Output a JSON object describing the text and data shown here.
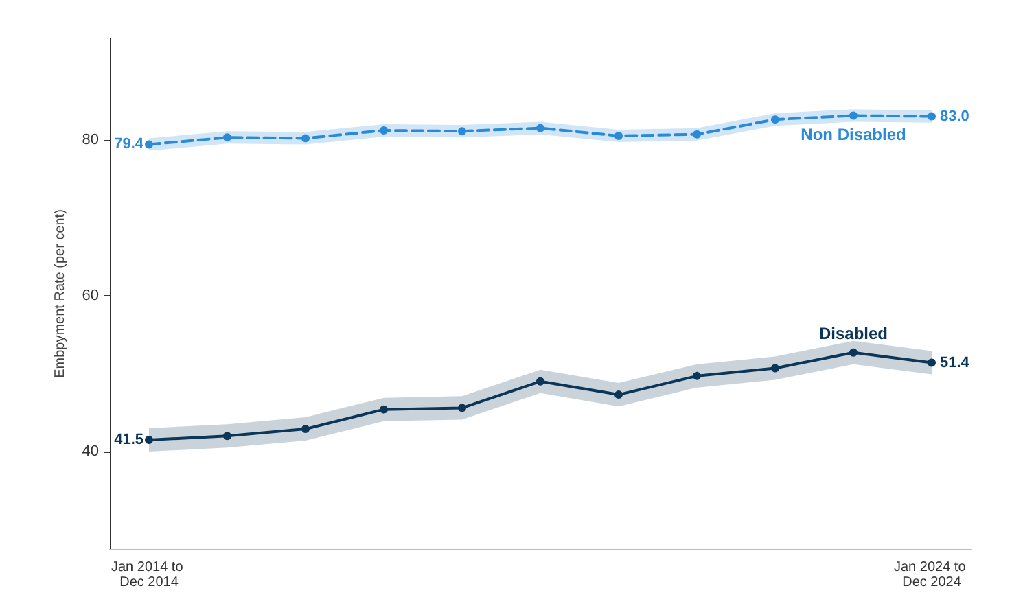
{
  "chart_data": {
    "type": "line",
    "ylabel": "Embpyment Rate (per cent)",
    "categories": [
      "Jan 2014 to Dec 2014",
      null,
      null,
      null,
      null,
      null,
      null,
      null,
      null,
      null,
      "Jan 2024 to Dec 2024"
    ],
    "ylim": [
      27.5,
      93
    ],
    "yticks": [
      40,
      60,
      80
    ],
    "grid": false,
    "legend": false,
    "marker": "circle",
    "series": [
      {
        "name": "Non Disabled",
        "color": "#2b8ad8",
        "line_style": "dashed",
        "values": [
          79.4,
          80.3,
          80.2,
          81.2,
          81.1,
          81.5,
          80.5,
          80.7,
          82.6,
          83.1,
          83.0
        ],
        "lower": [
          78.6,
          79.5,
          79.4,
          80.4,
          80.3,
          80.7,
          79.7,
          79.9,
          81.8,
          82.3,
          82.2
        ],
        "upper": [
          80.2,
          81.1,
          81.0,
          82.0,
          81.9,
          82.3,
          81.3,
          81.5,
          83.4,
          83.9,
          83.8
        ],
        "value_labels": [
          "79.4",
          null,
          null,
          null,
          null,
          null,
          null,
          null,
          null,
          null,
          "83.0"
        ]
      },
      {
        "name": "Disabled",
        "color": "#0c3657",
        "line_style": "solid",
        "values": [
          41.5,
          42.0,
          42.9,
          45.4,
          45.6,
          49.0,
          47.3,
          49.7,
          50.7,
          52.7,
          51.4
        ],
        "lower": [
          40.0,
          40.5,
          41.4,
          43.9,
          44.1,
          47.5,
          45.8,
          48.2,
          49.2,
          51.2,
          49.9
        ],
        "upper": [
          43.0,
          43.5,
          44.4,
          46.9,
          47.1,
          50.5,
          48.8,
          51.2,
          52.2,
          54.2,
          52.9
        ],
        "value_labels": [
          "41.5",
          null,
          null,
          null,
          null,
          null,
          null,
          null,
          null,
          null,
          "51.4"
        ]
      }
    ]
  }
}
